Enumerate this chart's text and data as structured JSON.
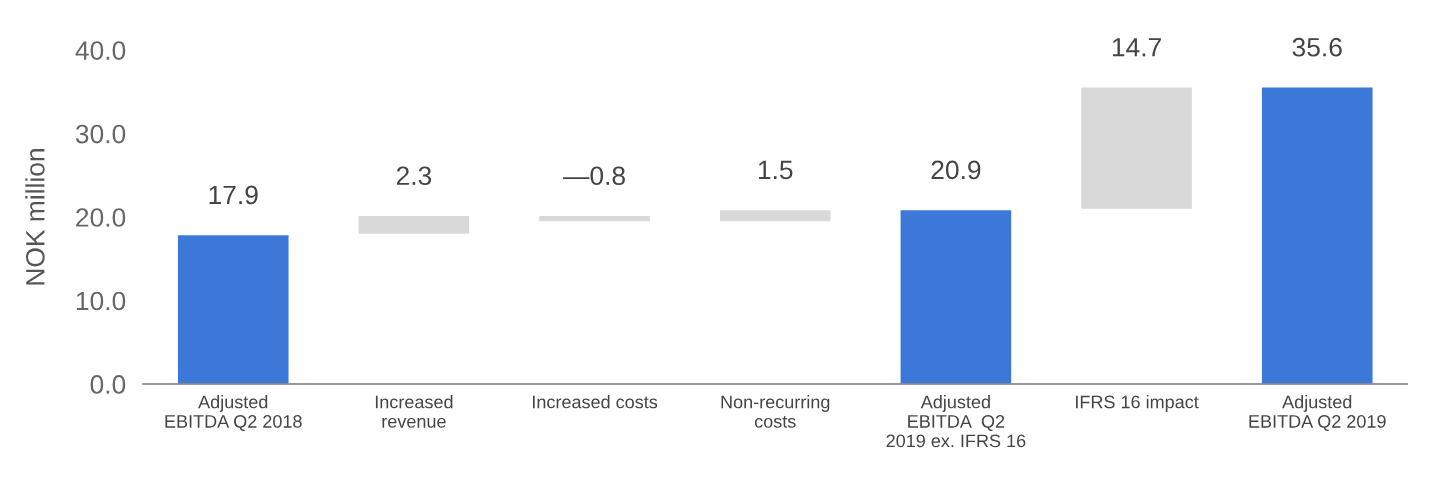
{
  "chart_data": {
    "type": "bar",
    "ylabel": "NOK million",
    "categories": [
      "Adjusted\nEBITDA Q2 2018",
      "Increased\nrevenue",
      "Increased costs",
      "Non-recurring\ncosts",
      "Adjusted\nEBITDA  Q2\n2019 ex. IFRS 16",
      "IFRS 16 impact",
      "Adjusted\nEBITDA Q2 2019"
    ],
    "values": [
      17.9,
      2.3,
      -0.8,
      1.5,
      20.9,
      14.7,
      35.6
    ],
    "base": [
      0,
      17.9,
      20.2,
      19.4,
      0,
      20.9,
      0
    ],
    "colors": [
      "#3c78d8",
      "#d9d9d9",
      "#d9d9d9",
      "#d9d9d9",
      "#3c78d8",
      "#d9d9d9",
      "#3c78d8"
    ],
    "value_labels": [
      "17.9",
      "2.3",
      "—0.8",
      "1.5",
      "20.9",
      "14.7",
      "35.6"
    ],
    "ylim": [
      0,
      40
    ],
    "yticks": [
      {
        "value": 0,
        "label": "0.0"
      },
      {
        "value": 10,
        "label": "10.0"
      },
      {
        "value": 20,
        "label": "20.0"
      },
      {
        "value": 30,
        "label": "30.0"
      },
      {
        "value": 40,
        "label": "40.0"
      }
    ],
    "grid": false
  }
}
